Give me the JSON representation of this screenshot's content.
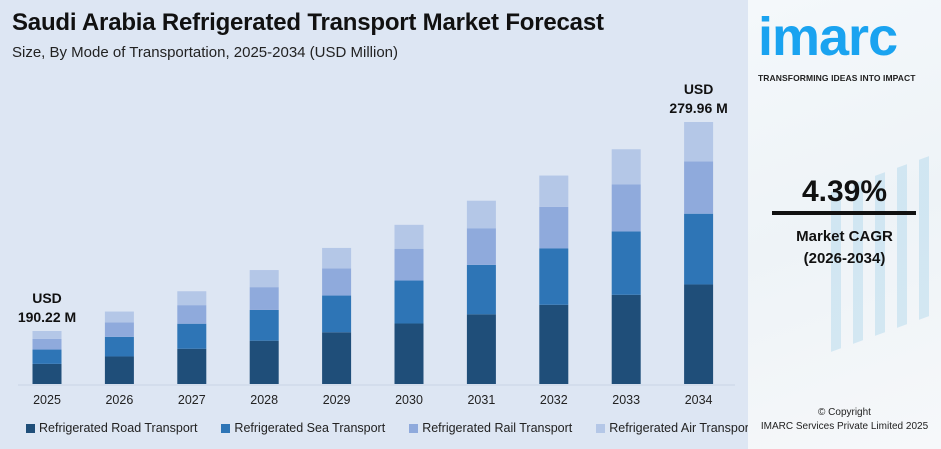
{
  "chart_data": {
    "type": "bar",
    "stacked": true,
    "title": "Saudi Arabia Refrigerated Transport Market Forecast",
    "subtitle": "Size, By Mode of Transportation, 2025-2034 (USD Million)",
    "categories": [
      "2025",
      "2026",
      "2027",
      "2028",
      "2029",
      "2030",
      "2031",
      "2032",
      "2033",
      "2034"
    ],
    "series": [
      {
        "name": "Refrigerated Road Transport",
        "color": "#1f4e79",
        "values": [
          72.28,
          75.46,
          78.77,
          82.23,
          85.84,
          89.61,
          93.54,
          97.65,
          101.94,
          106.38
        ]
      },
      {
        "name": "Refrigerated Sea Transport",
        "color": "#2e75b6",
        "values": [
          51.36,
          53.61,
          55.97,
          58.43,
          60.99,
          63.67,
          66.46,
          69.38,
          72.43,
          75.59
        ]
      },
      {
        "name": "Refrigerated Rail Transport",
        "color": "#8faadc",
        "values": [
          38.04,
          39.71,
          41.46,
          43.28,
          45.18,
          47.16,
          49.23,
          51.39,
          53.65,
          55.99
        ]
      },
      {
        "name": "Refrigerated Air Transport",
        "color": "#b4c7e7",
        "values": [
          28.54,
          29.79,
          31.09,
          32.45,
          33.88,
          35.37,
          36.93,
          38.55,
          40.23,
          42.0
        ]
      }
    ],
    "annotations": [
      {
        "category": "2025",
        "line1": "USD",
        "line2": "190.22 M"
      },
      {
        "category": "2034",
        "line1": "USD",
        "line2": "279.96 M"
      }
    ],
    "grid": false,
    "legend": "bottom"
  },
  "brand": {
    "logo": "imarc",
    "tagline": "TRANSFORMING IDEAS INTO IMPACT"
  },
  "cagr": {
    "value": "4.39%",
    "label": "Market CAGR",
    "period": "(2026-2034)"
  },
  "copyright": {
    "line1": "© Copyright",
    "line2": "IMARC Services Private Limited 2025"
  }
}
